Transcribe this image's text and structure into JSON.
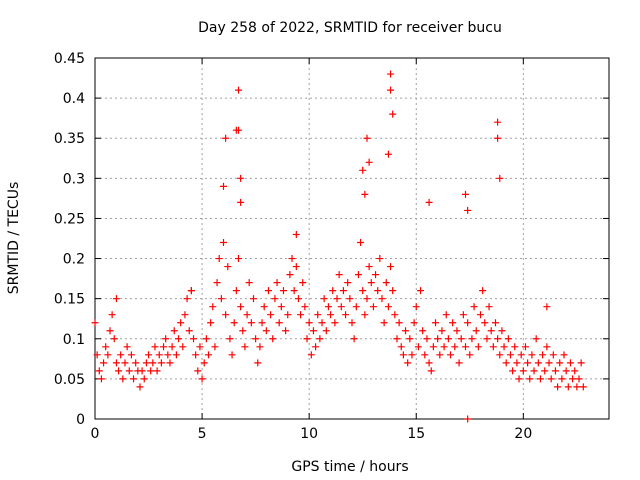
{
  "chart_data": {
    "type": "scatter",
    "title": "Day 258 of 2022, SRMTID for receiver bucu",
    "xlabel": "GPS time / hours",
    "ylabel": "SRMTID / TECUs",
    "xlim": [
      0,
      24
    ],
    "ylim": [
      0,
      0.45
    ],
    "xticks": [
      0,
      5,
      10,
      15,
      20
    ],
    "xtick_labels": [
      "0",
      "5",
      "10",
      "15",
      "20"
    ],
    "yticks": [
      0,
      0.05,
      0.1,
      0.15,
      0.2,
      0.25,
      0.3,
      0.35,
      0.4,
      0.45
    ],
    "ytick_labels": [
      "0",
      "0.05",
      "0.1",
      "0.15",
      "0.2",
      "0.25",
      "0.3",
      "0.35",
      "0.4",
      "0.45"
    ],
    "grid": true,
    "marker": "+",
    "series": [
      {
        "name": "SRMTID",
        "color": "#ff0000",
        "x": [
          0.0,
          0.1,
          0.2,
          0.3,
          0.4,
          0.5,
          0.6,
          0.7,
          0.8,
          0.9,
          1.0,
          1.1,
          1.2,
          1.3,
          1.4,
          1.5,
          1.6,
          1.7,
          1.8,
          1.9,
          2.0,
          2.1,
          2.2,
          2.3,
          2.4,
          2.5,
          2.6,
          2.7,
          2.8,
          2.9,
          3.0,
          3.1,
          3.2,
          3.3,
          3.4,
          3.5,
          3.6,
          3.7,
          3.8,
          3.9,
          4.0,
          4.1,
          4.2,
          4.3,
          4.4,
          4.5,
          4.6,
          4.7,
          4.8,
          4.9,
          5.0,
          5.1,
          5.2,
          5.3,
          5.4,
          5.5,
          5.6,
          5.7,
          5.8,
          5.9,
          6.0,
          6.1,
          6.2,
          6.3,
          6.4,
          6.5,
          6.6,
          6.7,
          6.8,
          6.9,
          7.0,
          7.1,
          7.2,
          7.3,
          7.4,
          7.5,
          7.6,
          7.7,
          7.8,
          7.9,
          8.0,
          8.1,
          8.2,
          8.3,
          8.4,
          8.5,
          8.6,
          8.7,
          8.8,
          8.9,
          9.0,
          9.1,
          9.2,
          9.3,
          9.4,
          9.5,
          9.6,
          9.7,
          9.8,
          9.9,
          10.0,
          10.1,
          10.2,
          10.3,
          10.4,
          10.5,
          10.6,
          10.7,
          10.8,
          10.9,
          11.0,
          11.1,
          11.2,
          11.3,
          11.4,
          11.5,
          11.6,
          11.7,
          11.8,
          11.9,
          12.0,
          12.1,
          12.2,
          12.3,
          12.4,
          12.5,
          12.6,
          12.7,
          12.8,
          12.9,
          13.0,
          13.1,
          13.2,
          13.3,
          13.4,
          13.5,
          13.6,
          13.7,
          13.8,
          13.9,
          14.0,
          14.1,
          14.2,
          14.3,
          14.4,
          14.5,
          14.6,
          14.7,
          14.8,
          14.9,
          15.0,
          15.1,
          15.2,
          15.3,
          15.4,
          15.5,
          15.6,
          15.7,
          15.8,
          15.9,
          16.0,
          16.1,
          16.2,
          16.3,
          16.4,
          16.5,
          16.6,
          16.7,
          16.8,
          16.9,
          17.0,
          17.1,
          17.2,
          17.3,
          17.4,
          17.5,
          17.6,
          17.7,
          17.8,
          17.9,
          18.0,
          18.1,
          18.2,
          18.3,
          18.4,
          18.5,
          18.6,
          18.7,
          18.8,
          18.9,
          19.0,
          19.1,
          19.2,
          19.3,
          19.4,
          19.5,
          19.6,
          19.7,
          19.8,
          19.9,
          20.0,
          20.1,
          20.2,
          20.3,
          20.4,
          20.5,
          20.6,
          20.7,
          20.8,
          20.9,
          21.0,
          21.1,
          21.2,
          21.3,
          21.4,
          21.5,
          21.6,
          21.7,
          21.8,
          21.9,
          22.0,
          22.1,
          22.2,
          22.3,
          22.4,
          22.5,
          22.6,
          22.7,
          22.8,
          6.0,
          6.1,
          6.6,
          6.7,
          6.7,
          6.8,
          6.8,
          12.5,
          12.6,
          12.7,
          12.8,
          13.7,
          13.8,
          13.8,
          13.9,
          15.6,
          17.3,
          17.4,
          18.8,
          18.8,
          18.9,
          9.4,
          4.5,
          1.0,
          21.1,
          17.4
        ],
        "y": [
          0.12,
          0.08,
          0.06,
          0.05,
          0.07,
          0.09,
          0.08,
          0.11,
          0.13,
          0.1,
          0.07,
          0.06,
          0.08,
          0.05,
          0.07,
          0.09,
          0.06,
          0.08,
          0.05,
          0.07,
          0.06,
          0.04,
          0.06,
          0.05,
          0.07,
          0.08,
          0.06,
          0.07,
          0.09,
          0.06,
          0.08,
          0.07,
          0.09,
          0.1,
          0.08,
          0.07,
          0.09,
          0.11,
          0.08,
          0.1,
          0.12,
          0.09,
          0.13,
          0.15,
          0.11,
          0.16,
          0.1,
          0.08,
          0.06,
          0.09,
          0.05,
          0.07,
          0.1,
          0.08,
          0.12,
          0.14,
          0.09,
          0.17,
          0.2,
          0.15,
          0.22,
          0.13,
          0.19,
          0.1,
          0.08,
          0.12,
          0.16,
          0.2,
          0.14,
          0.11,
          0.09,
          0.13,
          0.17,
          0.12,
          0.15,
          0.1,
          0.07,
          0.09,
          0.12,
          0.14,
          0.11,
          0.16,
          0.13,
          0.1,
          0.15,
          0.17,
          0.12,
          0.14,
          0.16,
          0.11,
          0.13,
          0.18,
          0.2,
          0.16,
          0.19,
          0.15,
          0.13,
          0.17,
          0.14,
          0.1,
          0.12,
          0.08,
          0.11,
          0.09,
          0.13,
          0.1,
          0.12,
          0.15,
          0.11,
          0.14,
          0.13,
          0.16,
          0.12,
          0.15,
          0.18,
          0.14,
          0.16,
          0.13,
          0.17,
          0.15,
          0.12,
          0.1,
          0.14,
          0.18,
          0.22,
          0.16,
          0.13,
          0.15,
          0.19,
          0.17,
          0.14,
          0.18,
          0.16,
          0.2,
          0.15,
          0.12,
          0.17,
          0.14,
          0.19,
          0.16,
          0.13,
          0.1,
          0.12,
          0.09,
          0.08,
          0.11,
          0.07,
          0.1,
          0.08,
          0.12,
          0.14,
          0.09,
          0.16,
          0.11,
          0.08,
          0.1,
          0.07,
          0.06,
          0.09,
          0.12,
          0.1,
          0.08,
          0.11,
          0.09,
          0.13,
          0.1,
          0.08,
          0.12,
          0.09,
          0.11,
          0.07,
          0.1,
          0.13,
          0.09,
          0.12,
          0.08,
          0.1,
          0.14,
          0.11,
          0.09,
          0.13,
          0.16,
          0.12,
          0.1,
          0.14,
          0.11,
          0.09,
          0.12,
          0.1,
          0.08,
          0.11,
          0.09,
          0.07,
          0.1,
          0.08,
          0.06,
          0.09,
          0.07,
          0.05,
          0.08,
          0.06,
          0.09,
          0.07,
          0.05,
          0.08,
          0.06,
          0.1,
          0.07,
          0.05,
          0.08,
          0.06,
          0.09,
          0.07,
          0.05,
          0.08,
          0.06,
          0.04,
          0.07,
          0.05,
          0.08,
          0.06,
          0.04,
          0.07,
          0.05,
          0.06,
          0.04,
          0.05,
          0.07,
          0.04,
          0.29,
          0.35,
          0.36,
          0.41,
          0.36,
          0.3,
          0.27,
          0.31,
          0.28,
          0.35,
          0.32,
          0.33,
          0.41,
          0.43,
          0.38,
          0.27,
          0.28,
          0.26,
          0.37,
          0.35,
          0.3,
          0.23,
          0.16,
          0.15,
          0.14,
          0.0
        ]
      }
    ]
  }
}
